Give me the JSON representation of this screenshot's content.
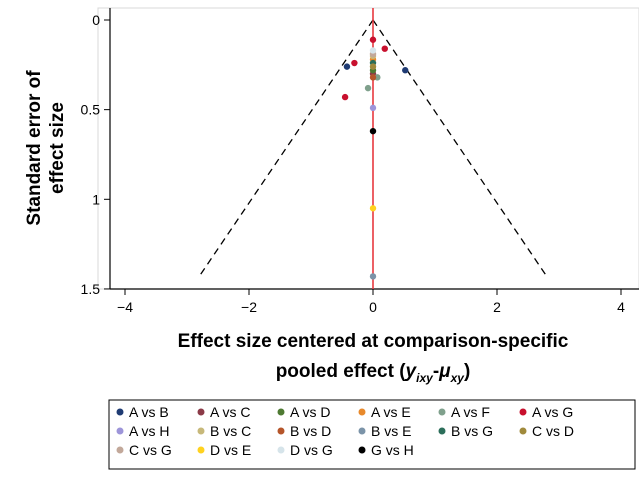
{
  "chart_data": {
    "type": "scatter",
    "subtype": "funnel plot",
    "xlabel_line1": "Effect size centered at comparison-specific",
    "xlabel_line2_prefix": "pooled effect (",
    "xlabel_y": "y",
    "xlabel_y_sub": "ixy",
    "xlabel_dash": "-",
    "xlabel_mu": "μ",
    "xlabel_mu_sub": "xy",
    "xlabel_suffix": ")",
    "ylabel_line1": "Standard error of",
    "ylabel_line2": "effect size",
    "xlim": [
      -4.1,
      4.1
    ],
    "ylim": [
      0,
      1.5
    ],
    "y_reversed": true,
    "x_ticks": [
      -4,
      -2,
      0,
      2,
      4
    ],
    "x_tick_labels": [
      "−4",
      "−2",
      "0",
      "2",
      "4"
    ],
    "y_ticks": [
      0,
      0.5,
      1,
      1.5
    ],
    "y_tick_labels": [
      "0",
      "0.5",
      "1",
      "1.5"
    ],
    "funnel_lines": {
      "apex": [
        0,
        0
      ],
      "bottom_se": 1.43,
      "slope_factor": 1.96,
      "style": "dashed",
      "color": "#000000"
    },
    "reference_line": {
      "x": 0,
      "color": "#e8393f"
    },
    "grid": false,
    "legend_position": "bottom",
    "series": [
      {
        "name": "A vs B",
        "color": "#1f3b73",
        "points": [
          [
            -0.42,
            0.26
          ],
          [
            0.52,
            0.28
          ]
        ]
      },
      {
        "name": "A vs C",
        "color": "#8b3a47",
        "points": [
          [
            0.0,
            0.3
          ]
        ]
      },
      {
        "name": "A vs D",
        "color": "#4e7a32",
        "points": [
          [
            0.0,
            0.28
          ]
        ]
      },
      {
        "name": "A vs E",
        "color": "#e8892b",
        "points": [
          [
            0.0,
            0.22
          ]
        ]
      },
      {
        "name": "A vs F",
        "color": "#7fa08c",
        "points": [
          [
            -0.08,
            0.38
          ],
          [
            0.07,
            0.32
          ]
        ]
      },
      {
        "name": "A vs G",
        "color": "#c8102e",
        "points": [
          [
            0.19,
            0.16
          ],
          [
            -0.3,
            0.24
          ],
          [
            -0.45,
            0.43
          ],
          [
            0.0,
            0.11
          ]
        ]
      },
      {
        "name": "A vs H",
        "color": "#9d95d9",
        "points": [
          [
            0.0,
            0.49
          ]
        ]
      },
      {
        "name": "B vs C",
        "color": "#c7b87a",
        "points": [
          [
            0.0,
            0.2
          ]
        ]
      },
      {
        "name": "B vs D",
        "color": "#b5552a",
        "points": [
          [
            0.0,
            0.32
          ]
        ]
      },
      {
        "name": "B vs E",
        "color": "#7b93a8",
        "points": [
          [
            0.0,
            1.43
          ]
        ]
      },
      {
        "name": "B vs G",
        "color": "#2c6e5a",
        "points": [
          [
            0.0,
            0.24
          ]
        ]
      },
      {
        "name": "C vs D",
        "color": "#a08a3c",
        "points": [
          [
            0.0,
            0.26
          ]
        ]
      },
      {
        "name": "C vs G",
        "color": "#c2a89a",
        "points": [
          [
            0.0,
            0.19
          ]
        ]
      },
      {
        "name": "D vs E",
        "color": "#ffd21f",
        "points": [
          [
            0.0,
            1.05
          ]
        ]
      },
      {
        "name": "D vs G",
        "color": "#d6e4ea",
        "points": [
          [
            0.0,
            0.17
          ]
        ]
      },
      {
        "name": "G vs H",
        "color": "#000000",
        "points": [
          [
            0.0,
            0.62
          ]
        ]
      }
    ]
  }
}
